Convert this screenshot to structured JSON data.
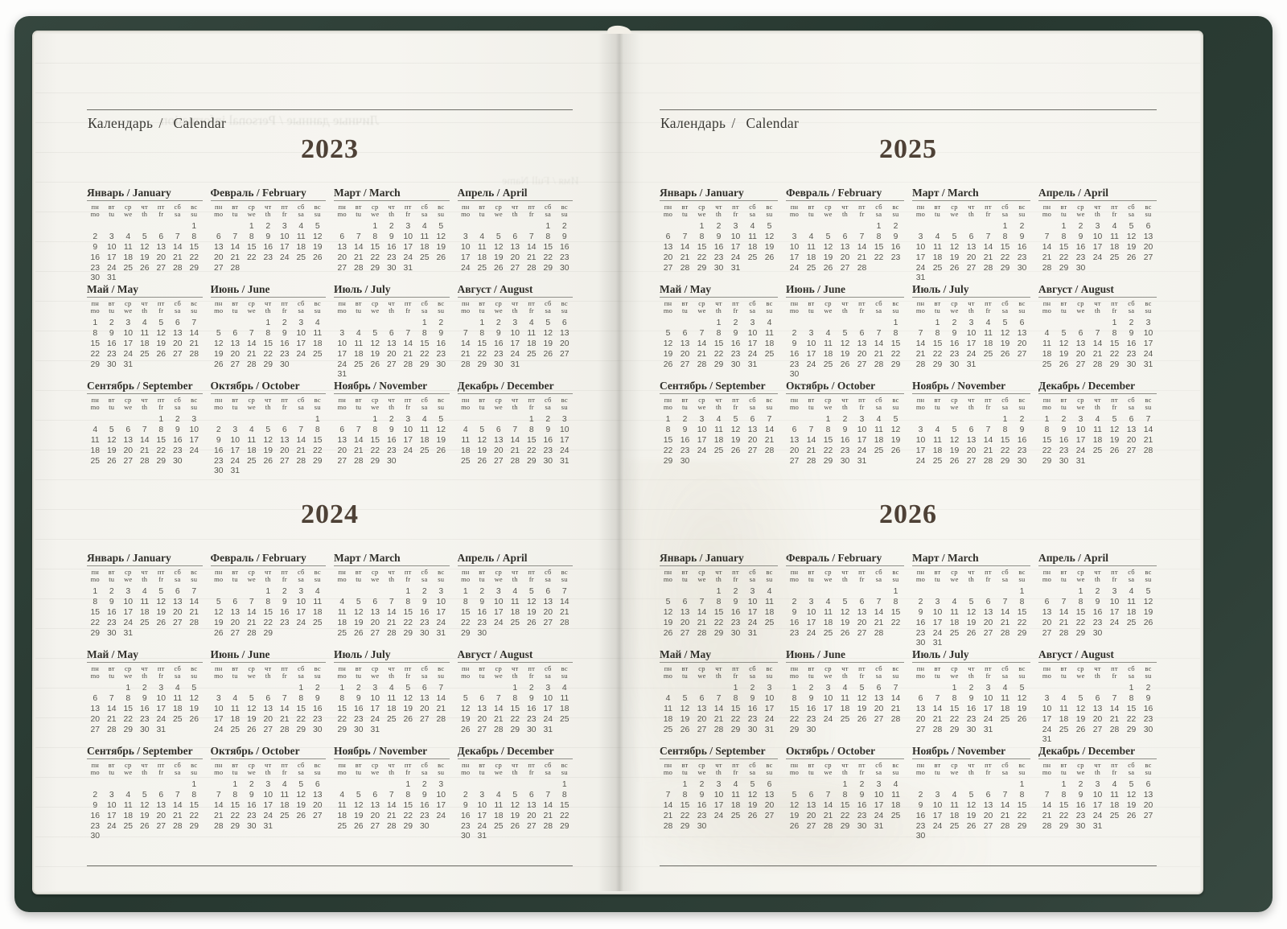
{
  "weekdays": {
    "ru": [
      "пн",
      "вт",
      "ср",
      "чт",
      "пт",
      "сб",
      "вс"
    ],
    "en": [
      "mo",
      "tu",
      "we",
      "th",
      "fr",
      "sa",
      "su"
    ]
  },
  "cover_color": "#2c3d35",
  "pages": [
    {
      "header": {
        "ru": "Календарь",
        "sep": "/",
        "en": "Calendar"
      },
      "ghosts": [
        "Личные данные / Personal information",
        "Имя / Full Name"
      ],
      "years": [
        {
          "label": "2023",
          "months": [
            {
              "label": "Январь / January",
              "first": 6,
              "days": 31
            },
            {
              "label": "Февраль / February",
              "first": 2,
              "days": 28
            },
            {
              "label": "Март / March",
              "first": 2,
              "days": 31
            },
            {
              "label": "Апрель / April",
              "first": 5,
              "days": 30
            },
            {
              "label": "Май / May",
              "first": 0,
              "days": 31
            },
            {
              "label": "Июнь / June",
              "first": 3,
              "days": 30
            },
            {
              "label": "Июль / July",
              "first": 5,
              "days": 31
            },
            {
              "label": "Август / August",
              "first": 1,
              "days": 31
            },
            {
              "label": "Сентябрь / September",
              "first": 4,
              "days": 30
            },
            {
              "label": "Октябрь / October",
              "first": 6,
              "days": 31
            },
            {
              "label": "Ноябрь / November",
              "first": 2,
              "days": 30
            },
            {
              "label": "Декабрь / December",
              "first": 4,
              "days": 31
            }
          ]
        },
        {
          "label": "2024",
          "months": [
            {
              "label": "Январь / January",
              "first": 0,
              "days": 31
            },
            {
              "label": "Февраль / February",
              "first": 3,
              "days": 29
            },
            {
              "label": "Март / March",
              "first": 4,
              "days": 31
            },
            {
              "label": "Апрель / April",
              "first": 0,
              "days": 30
            },
            {
              "label": "Май / May",
              "first": 2,
              "days": 31
            },
            {
              "label": "Июнь / June",
              "first": 5,
              "days": 30
            },
            {
              "label": "Июль / July",
              "first": 0,
              "days": 31
            },
            {
              "label": "Август / August",
              "first": 3,
              "days": 31
            },
            {
              "label": "Сентябрь / September",
              "first": 6,
              "days": 30
            },
            {
              "label": "Октябрь / October",
              "first": 1,
              "days": 31
            },
            {
              "label": "Ноябрь / November",
              "first": 4,
              "days": 30
            },
            {
              "label": "Декабрь / December",
              "first": 6,
              "days": 31
            }
          ]
        }
      ]
    },
    {
      "header": {
        "ru": "Календарь",
        "sep": "/",
        "en": "Calendar"
      },
      "ghosts": [],
      "years": [
        {
          "label": "2025",
          "months": [
            {
              "label": "Январь / January",
              "first": 2,
              "days": 31
            },
            {
              "label": "Февраль / February",
              "first": 5,
              "days": 28
            },
            {
              "label": "Март / March",
              "first": 5,
              "days": 31
            },
            {
              "label": "Апрель / April",
              "first": 1,
              "days": 30
            },
            {
              "label": "Май / May",
              "first": 3,
              "days": 31
            },
            {
              "label": "Июнь / June",
              "first": 6,
              "days": 30
            },
            {
              "label": "Июль / July",
              "first": 1,
              "days": 31
            },
            {
              "label": "Август / August",
              "first": 4,
              "days": 31
            },
            {
              "label": "Сентябрь / September",
              "first": 0,
              "days": 30
            },
            {
              "label": "Октябрь / October",
              "first": 2,
              "days": 31
            },
            {
              "label": "Ноябрь / November",
              "first": 5,
              "days": 30
            },
            {
              "label": "Декабрь / December",
              "first": 0,
              "days": 31
            }
          ]
        },
        {
          "label": "2026",
          "months": [
            {
              "label": "Январь / January",
              "first": 3,
              "days": 31
            },
            {
              "label": "Февраль / February",
              "first": 6,
              "days": 28
            },
            {
              "label": "Март / March",
              "first": 6,
              "days": 31
            },
            {
              "label": "Апрель / April",
              "first": 2,
              "days": 30
            },
            {
              "label": "Май / May",
              "first": 4,
              "days": 31
            },
            {
              "label": "Июнь / June",
              "first": 0,
              "days": 30
            },
            {
              "label": "Июль / July",
              "first": 2,
              "days": 31
            },
            {
              "label": "Август / August",
              "first": 5,
              "days": 31
            },
            {
              "label": "Сентябрь / September",
              "first": 1,
              "days": 30
            },
            {
              "label": "Октябрь / October",
              "first": 3,
              "days": 31
            },
            {
              "label": "Ноябрь / November",
              "first": 6,
              "days": 30
            },
            {
              "label": "Декабрь / December",
              "first": 1,
              "days": 31
            }
          ]
        }
      ]
    }
  ]
}
